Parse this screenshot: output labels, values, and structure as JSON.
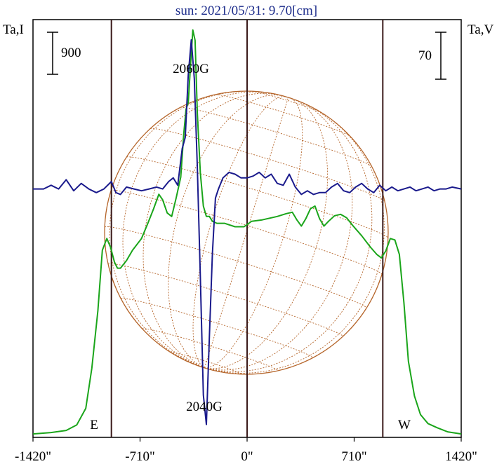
{
  "chart_data": {
    "type": "line",
    "title": "sun: 2021/05/31: 9.70[cm]",
    "left_axis_label": "Ta,I",
    "right_axis_label": "Ta,V",
    "left_scale_bar": "900",
    "right_scale_bar": "70",
    "xlim": [
      -1420,
      1420
    ],
    "x_ticks": [
      {
        "value": -1420,
        "label": "-1420\""
      },
      {
        "value": -710,
        "label": "-710\""
      },
      {
        "value": 0,
        "label": "0\""
      },
      {
        "value": 710,
        "label": "710\""
      },
      {
        "value": 1420,
        "label": "1420\""
      }
    ],
    "limb_markers": [
      {
        "value": -900,
        "label": "E"
      },
      {
        "value": 0,
        "label": ""
      },
      {
        "value": 900,
        "label": "W"
      }
    ],
    "annotations": [
      {
        "text": "2060G",
        "x": -370
      },
      {
        "text": "2040G",
        "x": -270
      }
    ],
    "colors": {
      "intensity": "#1aa51a",
      "polarization": "#1a1a8c",
      "disk": "#b5652a",
      "frame": "#000000",
      "title": "#1a2a8a"
    },
    "series": [
      {
        "id": "intensity",
        "x": [
          -1420,
          -1300,
          -1200,
          -1130,
          -1070,
          -1030,
          -990,
          -960,
          -930,
          -905,
          -880,
          -860,
          -840,
          -800,
          -760,
          -700,
          -660,
          -620,
          -585,
          -560,
          -530,
          -500,
          -470,
          -440,
          -420,
          -405,
          -390,
          -375,
          -360,
          -345,
          -330,
          -310,
          -290,
          -270,
          -250,
          -230,
          -200,
          -150,
          -80,
          -20,
          30,
          100,
          200,
          260,
          300,
          330,
          360,
          390,
          420,
          450,
          480,
          510,
          540,
          580,
          620,
          660,
          700,
          760,
          820,
          860,
          890,
          920,
          950,
          980,
          1010,
          1040,
          1070,
          1110,
          1150,
          1200,
          1260,
          1330,
          1420
        ],
        "values": [
          0,
          20,
          50,
          130,
          370,
          950,
          1780,
          2660,
          2830,
          2700,
          2490,
          2400,
          2400,
          2510,
          2660,
          2830,
          3040,
          3260,
          3470,
          3390,
          3200,
          3150,
          3420,
          3720,
          4350,
          4700,
          4800,
          5350,
          5850,
          5700,
          4650,
          3780,
          3300,
          3150,
          3150,
          3080,
          3050,
          3050,
          3000,
          3000,
          3080,
          3100,
          3150,
          3190,
          3210,
          3100,
          3010,
          3120,
          3260,
          3300,
          3120,
          3010,
          3080,
          3160,
          3180,
          3130,
          3020,
          2870,
          2700,
          2600,
          2550,
          2650,
          2830,
          2810,
          2600,
          1900,
          1050,
          550,
          280,
          150,
          90,
          30,
          0
        ],
        "ylim": [
          -50,
          6000
        ]
      },
      {
        "id": "polarization",
        "x": [
          -1420,
          -1350,
          -1300,
          -1250,
          -1200,
          -1150,
          -1100,
          -1050,
          -1000,
          -950,
          -900,
          -870,
          -840,
          -800,
          -750,
          -700,
          -650,
          -600,
          -560,
          -520,
          -490,
          -460,
          -430,
          -410,
          -390,
          -370,
          -350,
          -330,
          -310,
          -290,
          -270,
          -250,
          -230,
          -210,
          -190,
          -160,
          -120,
          -80,
          -40,
          0,
          40,
          80,
          120,
          160,
          200,
          240,
          280,
          320,
          360,
          400,
          440,
          480,
          520,
          560,
          600,
          640,
          680,
          720,
          760,
          800,
          840,
          880,
          920,
          960,
          1000,
          1040,
          1080,
          1120,
          1160,
          1200,
          1240,
          1280,
          1320,
          1360,
          1420
        ],
        "values": [
          0,
          0,
          2,
          0,
          5,
          -1,
          3,
          0,
          -2,
          0,
          4,
          -2,
          -3,
          1,
          0,
          -1,
          0,
          1,
          0,
          4,
          6,
          2,
          22,
          28,
          62,
          81,
          60,
          12,
          -48,
          -112,
          -128,
          -80,
          -35,
          -5,
          0,
          6,
          9,
          8,
          6,
          6,
          7,
          9,
          6,
          8,
          3,
          2,
          8,
          1,
          -3,
          -1,
          -3,
          -2,
          -2,
          1,
          3,
          -1,
          -2,
          1,
          3,
          0,
          -2,
          2,
          -1,
          1,
          -1,
          0,
          1,
          -1,
          0,
          1,
          -1,
          0,
          0,
          1,
          0
        ],
        "ylim": [
          -135,
          92
        ]
      }
    ]
  }
}
